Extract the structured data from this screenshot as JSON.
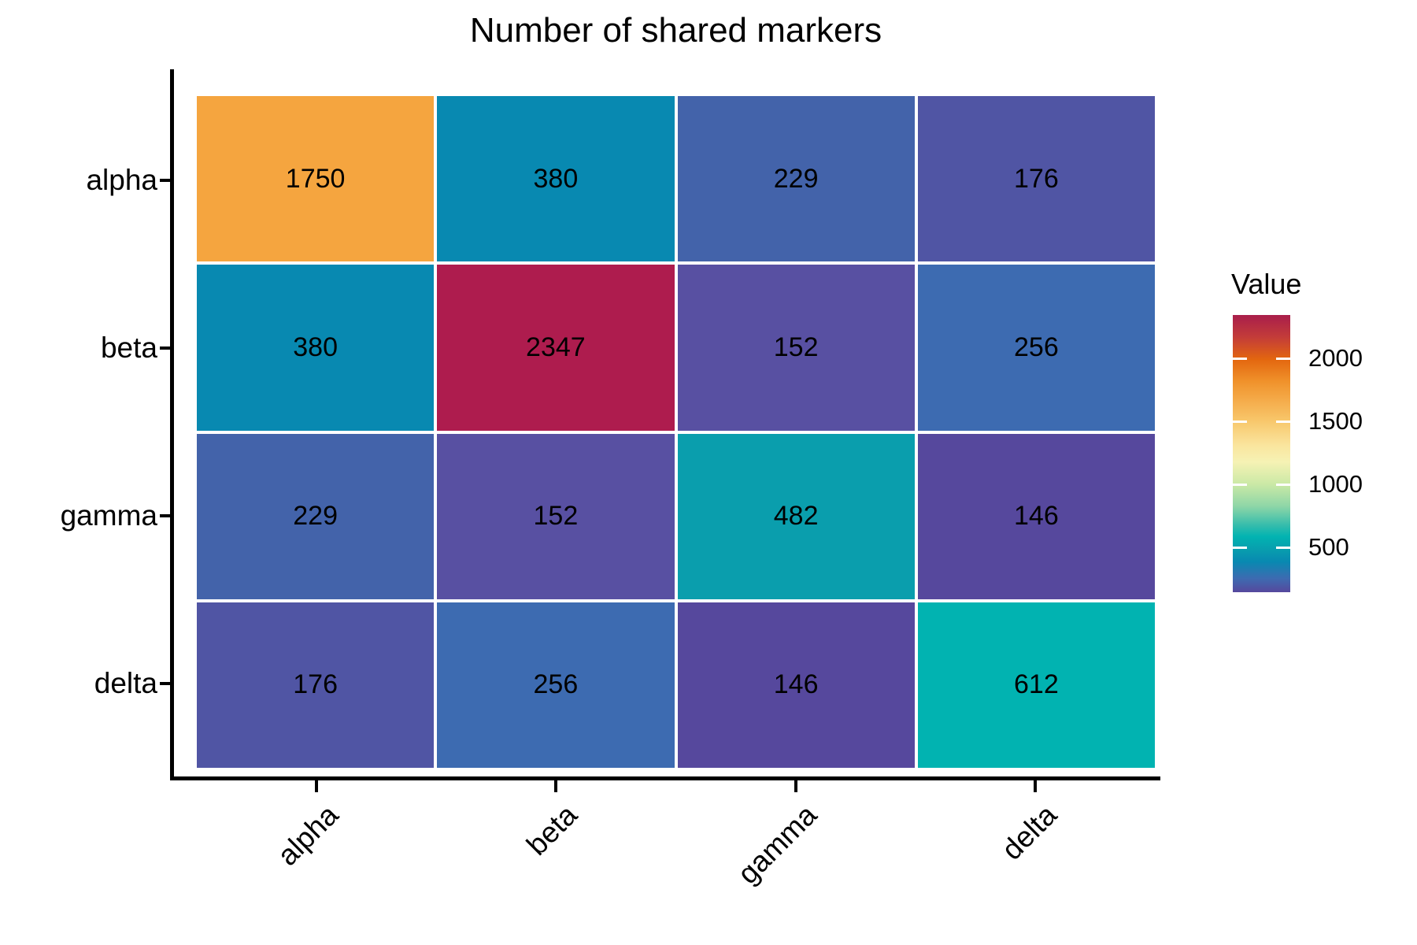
{
  "title": "Number of shared markers",
  "legend": {
    "title": "Value",
    "ticks": [
      2000,
      1500,
      1000,
      500
    ]
  },
  "colors": {
    "background": "#FFFFFF",
    "axis": "#000000",
    "text": "#000000",
    "tile_gap": "#FFFFFF"
  },
  "chart_data": {
    "type": "heatmap",
    "title": "Number of shared markers",
    "rows": [
      "alpha",
      "beta",
      "gamma",
      "delta"
    ],
    "columns": [
      "alpha",
      "beta",
      "gamma",
      "delta"
    ],
    "values": [
      [
        1750,
        380,
        229,
        176
      ],
      [
        380,
        2347,
        152,
        256
      ],
      [
        229,
        152,
        482,
        146
      ],
      [
        176,
        256,
        146,
        612
      ]
    ],
    "value_range": [
      146,
      2347
    ],
    "legend_title": "Value",
    "legend_ticks": [
      2000,
      1500,
      1000,
      500
    ],
    "legend_position": "right",
    "colormap": "spectral-reversed",
    "colormap_stops": [
      {
        "pos": 0.0,
        "color": "#A91E4B"
      },
      {
        "pos": 0.08,
        "color": "#C33C39"
      },
      {
        "pos": 0.16,
        "color": "#E3660F"
      },
      {
        "pos": 0.24,
        "color": "#F0922B"
      },
      {
        "pos": 0.31,
        "color": "#F5AC4B"
      },
      {
        "pos": 0.38,
        "color": "#F8C66A"
      },
      {
        "pos": 0.47,
        "color": "#FAE59E"
      },
      {
        "pos": 0.53,
        "color": "#F6F2B4"
      },
      {
        "pos": 0.61,
        "color": "#CBE9A6"
      },
      {
        "pos": 0.69,
        "color": "#8ED6A7"
      },
      {
        "pos": 0.76,
        "color": "#33BCAC"
      },
      {
        "pos": 0.8,
        "color": "#01B3B1"
      },
      {
        "pos": 0.85,
        "color": "#089CAE"
      },
      {
        "pos": 0.89,
        "color": "#0889B1"
      },
      {
        "pos": 0.95,
        "color": "#3D6BB1"
      },
      {
        "pos": 1.0,
        "color": "#56489D"
      }
    ],
    "cell_colors": [
      [
        "#F5A53F",
        "#0889B1",
        "#4363AA",
        "#5055A4"
      ],
      [
        "#0889B1",
        "#AE1C4E",
        "#5850A2",
        "#3D6BB1"
      ],
      [
        "#4363AA",
        "#5850A2",
        "#0A9EAD",
        "#56489D"
      ],
      [
        "#5055A4",
        "#3D6BB1",
        "#56489D",
        "#01B3B1"
      ]
    ]
  }
}
